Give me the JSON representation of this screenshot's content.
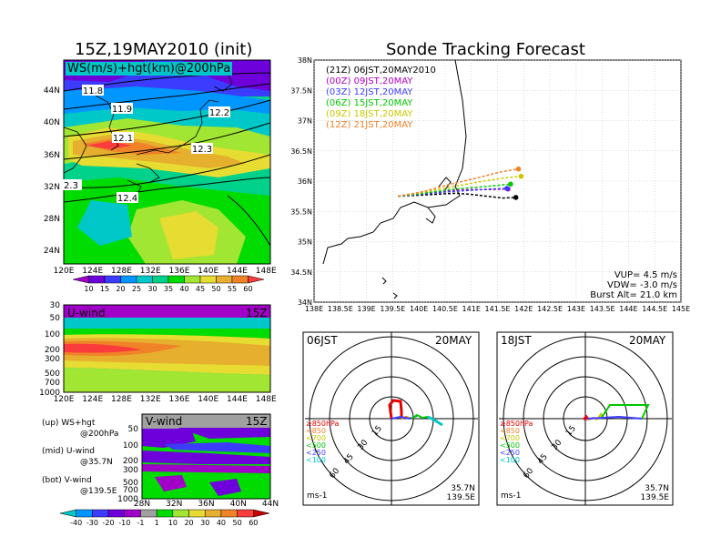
{
  "left": {
    "title": "15Z,19MAY2010 (init)",
    "map": {
      "label": "WS(m/s)+hgt(km)@200hPa",
      "lat_labels": [
        "44N",
        "40N",
        "36N",
        "32N",
        "28N",
        "24N"
      ],
      "lon_labels": [
        "120E",
        "124E",
        "128E",
        "132E",
        "136E",
        "140E",
        "144E",
        "148E"
      ],
      "contour_labels": [
        "11.8",
        "11.9",
        "12.1",
        "12.2",
        "12.3",
        "12.4",
        "2.3"
      ]
    },
    "colorbar_top": {
      "labels": [
        "10",
        "15",
        "20",
        "25",
        "30",
        "35",
        "40",
        "45",
        "50",
        "55",
        "60"
      ],
      "colors": [
        "#a000c8",
        "#6e00dc",
        "#3c3cff",
        "#0096ff",
        "#00c8c8",
        "#00d28c",
        "#00dc00",
        "#a0e632",
        "#e6dc32",
        "#e6af2d",
        "#f08228",
        "#fa3c3c"
      ]
    },
    "uwind": {
      "label": "U-wind",
      "time": "15Z",
      "p_labels": [
        "30",
        "50",
        "100",
        "200",
        "300",
        "500",
        "700",
        "1000"
      ],
      "lon_labels": [
        "120E",
        "124E",
        "128E",
        "132E",
        "136E",
        "140E",
        "144E",
        "148E"
      ]
    },
    "vwind": {
      "label": "V-wind",
      "time": "15Z",
      "p_labels": [
        "50",
        "100",
        "200",
        "300",
        "500",
        "700",
        "1000"
      ],
      "lat_labels": [
        "28N",
        "32N",
        "36N",
        "40N",
        "44N"
      ]
    },
    "notes": [
      {
        "tag": "(up)",
        "text": "WS+hgt",
        "sub": "@200hPa"
      },
      {
        "tag": "(mid)",
        "text": "U-wind",
        "sub": "@35.7N"
      },
      {
        "tag": "(bot)",
        "text": "V-wind",
        "sub": "@139.5E"
      }
    ],
    "colorbar_bottom": {
      "labels": [
        "-40",
        "-30",
        "-20",
        "-10",
        "-1",
        "1",
        "10",
        "20",
        "30",
        "40",
        "50",
        "60"
      ],
      "colors": [
        "#00c8c8",
        "#0096ff",
        "#3c3cff",
        "#6e00dc",
        "#a000c8",
        "#a0a0a0",
        "#00dc00",
        "#a0e632",
        "#e6dc32",
        "#e6af2d",
        "#f08228",
        "#fa3c3c",
        "#c80000"
      ]
    }
  },
  "right": {
    "title": "Sonde Tracking Forecast",
    "lat_labels": [
      "38N",
      "37.5N",
      "37N",
      "36.5N",
      "36N",
      "35.5N",
      "35N",
      "34.5N",
      "34N"
    ],
    "lon_labels": [
      "138E",
      "138.5E",
      "139E",
      "139.5E",
      "140E",
      "140.5E",
      "141E",
      "141.5E",
      "142E",
      "142.5E",
      "143E",
      "143.5E",
      "144E",
      "144.5E",
      "145E"
    ],
    "legend": [
      {
        "code": "(21Z)",
        "text": "06JST,20MAY2010",
        "color": "#000000"
      },
      {
        "code": "(00Z)",
        "text": "09JST,20MAY",
        "color": "#b400c8"
      },
      {
        "code": "(03Z)",
        "text": "12JST,20MAY",
        "color": "#3c3cff"
      },
      {
        "code": "(06Z)",
        "text": "15JST,20MAY",
        "color": "#00c800"
      },
      {
        "code": "(09Z)",
        "text": "18JST,20MAY",
        "color": "#c8c800"
      },
      {
        "code": "(12Z)",
        "text": "21JST,20MAY",
        "color": "#f08228"
      }
    ],
    "params": {
      "vup": "VUP= 4.5 m/s",
      "vdw": "VDW= -3.0 m/s",
      "burst": "Burst Alt= 21.0 km"
    },
    "hodo_left": {
      "time": "06JST",
      "date": "20MAY",
      "ring_labels": [
        "15",
        "30",
        "45",
        "60"
      ],
      "levels": [
        {
          "text": "≥850hPa",
          "color": "#e60000"
        },
        {
          "text": "<850",
          "color": "#f08228"
        },
        {
          "text": "<700",
          "color": "#c8c800"
        },
        {
          "text": "<500",
          "color": "#00c800"
        },
        {
          "text": "<250",
          "color": "#3c3cff"
        },
        {
          "text": "<100",
          "color": "#00c8c8"
        }
      ],
      "units": "ms-1",
      "lat": "35.7N",
      "lon": "139.5E"
    },
    "hodo_right": {
      "time": "18JST",
      "date": "20MAY",
      "ring_labels": [
        "15",
        "30",
        "45",
        "60"
      ],
      "levels": [
        {
          "text": "≥850hPa",
          "color": "#e60000"
        },
        {
          "text": "<850",
          "color": "#f08228"
        },
        {
          "text": "<700",
          "color": "#c8c800"
        },
        {
          "text": "<500",
          "color": "#00c800"
        },
        {
          "text": "<250",
          "color": "#3c3cff"
        },
        {
          "text": "<100",
          "color": "#00c8c8"
        }
      ],
      "units": "ms-1",
      "lat": "35.7N",
      "lon": "139.5E"
    }
  },
  "chart_data": [
    {
      "type": "line",
      "title": "Sonde Tracking Forecast",
      "xlim": [
        138,
        145
      ],
      "ylim": [
        34,
        38
      ],
      "xlabel": "",
      "ylabel": "",
      "series": [
        {
          "name": "(21Z) 06JST,20MAY2010",
          "x": [
            139.6,
            140.3,
            140.7,
            141.0,
            141.4,
            141.6,
            141.85
          ],
          "y": [
            35.75,
            35.78,
            35.8,
            35.78,
            35.74,
            35.72,
            35.73
          ]
        },
        {
          "name": "(00Z) 09JST,20MAY",
          "x": [
            139.6,
            140.1,
            140.6,
            141.0,
            141.4,
            141.7
          ],
          "y": [
            35.75,
            35.8,
            35.84,
            35.86,
            35.86,
            35.87
          ]
        },
        {
          "name": "(03Z) 12JST,20MAY",
          "x": [
            139.6,
            140.0,
            140.5,
            141.0,
            141.4,
            141.68
          ],
          "y": [
            35.75,
            35.78,
            35.82,
            35.85,
            35.87,
            35.88
          ]
        },
        {
          "name": "(06Z) 15JST,20MAY",
          "x": [
            139.6,
            140.1,
            140.6,
            141.1,
            141.5,
            141.75
          ],
          "y": [
            35.75,
            35.8,
            35.86,
            35.9,
            35.93,
            35.95
          ]
        },
        {
          "name": "(09Z) 18JST,20MAY",
          "x": [
            139.6,
            140.1,
            140.6,
            141.1,
            141.6,
            141.95
          ],
          "y": [
            35.75,
            35.82,
            35.9,
            35.98,
            36.05,
            36.08
          ]
        },
        {
          "name": "(12Z) 21JST,20MAY",
          "x": [
            139.6,
            140.1,
            140.6,
            141.1,
            141.55,
            141.9
          ],
          "y": [
            35.75,
            35.83,
            35.95,
            36.05,
            36.15,
            36.2
          ]
        }
      ]
    }
  ]
}
